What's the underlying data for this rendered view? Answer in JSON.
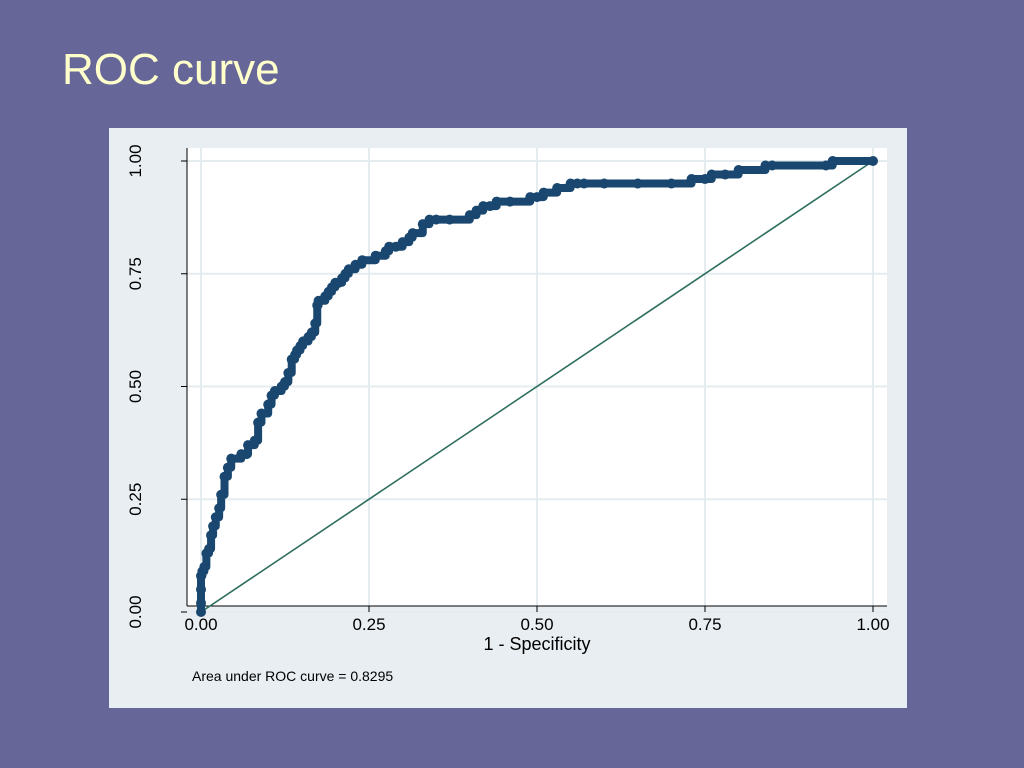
{
  "slide": {
    "title": "ROC curve"
  },
  "colors": {
    "slide_background": "#666699",
    "title_text": "#ffffcc",
    "panel_background": "#e8eef2",
    "plot_background": "#ffffff",
    "grid": "#e4ecef",
    "roc_curve": "#1a476f",
    "reference_line": "#2d6e5e"
  },
  "chart_data": {
    "type": "line",
    "title": "",
    "xlabel": "1 - Specificity",
    "ylabel": "",
    "xlim": [
      0,
      1
    ],
    "ylim": [
      0,
      1
    ],
    "xticks": [
      "0.00",
      "0.25",
      "0.50",
      "0.75",
      "1.00"
    ],
    "yticks": [
      "0.00",
      "0.25",
      "0.50",
      "0.75",
      "1.00"
    ],
    "grid": true,
    "note": "Area under ROC curve = 0.8295",
    "series": [
      {
        "markers": true,
        "x": [
          0.0,
          0.0,
          0.0,
          0.0,
          0.002,
          0.005,
          0.008,
          0.012,
          0.015,
          0.018,
          0.022,
          0.027,
          0.03,
          0.035,
          0.04,
          0.045,
          0.06,
          0.068,
          0.07,
          0.08,
          0.085,
          0.09,
          0.1,
          0.105,
          0.11,
          0.12,
          0.125,
          0.13,
          0.135,
          0.14,
          0.143,
          0.148,
          0.152,
          0.16,
          0.165,
          0.17,
          0.173,
          0.175,
          0.185,
          0.19,
          0.195,
          0.2,
          0.205,
          0.21,
          0.215,
          0.22,
          0.23,
          0.24,
          0.26,
          0.275,
          0.28,
          0.29,
          0.3,
          0.31,
          0.315,
          0.33,
          0.34,
          0.35,
          0.37,
          0.4,
          0.41,
          0.42,
          0.43,
          0.44,
          0.46,
          0.49,
          0.5,
          0.51,
          0.53,
          0.55,
          0.56,
          0.57,
          0.6,
          0.65,
          0.7,
          0.73,
          0.75,
          0.76,
          0.78,
          0.8,
          0.84,
          0.85,
          0.93,
          0.94,
          1.0
        ],
        "y": [
          0.0,
          0.02,
          0.05,
          0.08,
          0.09,
          0.1,
          0.13,
          0.14,
          0.17,
          0.19,
          0.21,
          0.23,
          0.26,
          0.3,
          0.32,
          0.34,
          0.35,
          0.35,
          0.37,
          0.38,
          0.42,
          0.44,
          0.46,
          0.48,
          0.49,
          0.5,
          0.51,
          0.53,
          0.56,
          0.57,
          0.58,
          0.59,
          0.6,
          0.61,
          0.62,
          0.64,
          0.68,
          0.69,
          0.7,
          0.71,
          0.72,
          0.73,
          0.73,
          0.74,
          0.75,
          0.76,
          0.77,
          0.78,
          0.79,
          0.8,
          0.81,
          0.81,
          0.82,
          0.83,
          0.84,
          0.86,
          0.87,
          0.87,
          0.87,
          0.88,
          0.89,
          0.9,
          0.9,
          0.91,
          0.91,
          0.92,
          0.92,
          0.93,
          0.94,
          0.95,
          0.95,
          0.95,
          0.95,
          0.95,
          0.95,
          0.96,
          0.96,
          0.97,
          0.97,
          0.98,
          0.99,
          0.99,
          0.99,
          1.0,
          1.0
        ]
      },
      {
        "markers": false,
        "x": [
          0,
          1
        ],
        "y": [
          0,
          1
        ]
      }
    ]
  }
}
